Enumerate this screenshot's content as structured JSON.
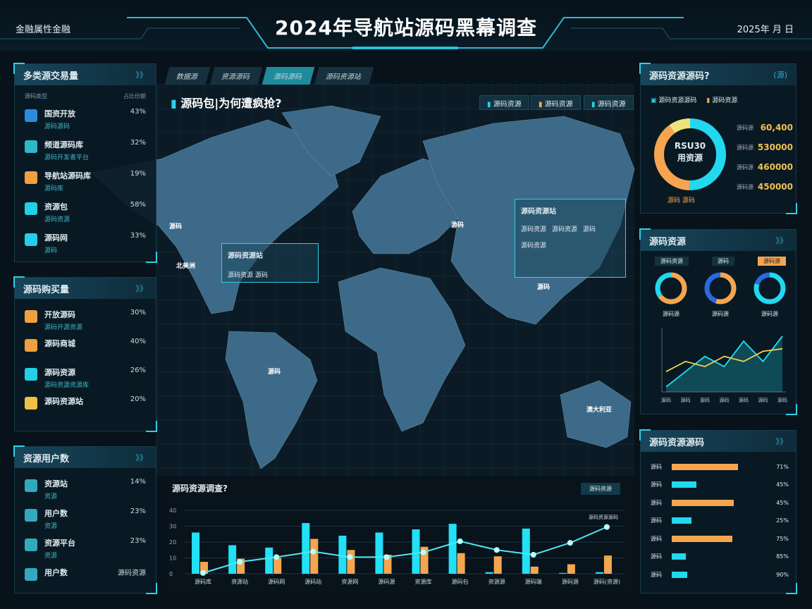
{
  "header": {
    "title": "2024年导航站源码黑幕调查",
    "left": "金融属性金融",
    "right": "2025年 月 日"
  },
  "colors": {
    "accent": "#22e0f5",
    "orange": "#f5a550",
    "yellow": "#f0e070",
    "map": "#3d6a88",
    "bg": "#07121b"
  },
  "left_panels": [
    {
      "title": "多类源交易量",
      "more": "》》",
      "col1": "源码类型",
      "col2": "占比份额",
      "items": [
        {
          "icon": "bottle-icon",
          "color": "#2a8be0",
          "name": "国资开放",
          "sub": "源码源码",
          "pct": "43%"
        },
        {
          "icon": "bucket-icon",
          "color": "#2fb8c8",
          "name": "频道源码库",
          "sub": "源码开发者平台",
          "pct": "32%"
        },
        {
          "icon": "box-icon",
          "color": "#f0a040",
          "name": "导航站源码库",
          "sub": "源码库",
          "pct": "19%"
        },
        {
          "icon": "cake-icon",
          "color": "#22d0e8",
          "name": "资源包",
          "sub": "源码资源",
          "pct": "58%"
        },
        {
          "icon": "book-icon",
          "color": "#22d0e8",
          "name": "源码网",
          "sub": "源码",
          "pct": "33%"
        }
      ]
    },
    {
      "title": "源码购买量",
      "more": "》》",
      "items": [
        {
          "icon": "tag-icon",
          "color": "#f0a040",
          "name": "开放源码",
          "sub": "源码开源资源",
          "pct": "30%"
        },
        {
          "icon": "ticket-icon",
          "color": "#f0a040",
          "name": "源码商城",
          "sub": "",
          "pct": "40%"
        },
        {
          "icon": "chat-icon",
          "color": "#22d0e8",
          "name": "源码资源",
          "sub": "源码资源资源库",
          "pct": "26%"
        },
        {
          "icon": "gift-icon",
          "color": "#f0c040",
          "name": "源码资源站",
          "sub": "",
          "pct": "20%"
        }
      ]
    },
    {
      "title": "资源用户数",
      "more": "》》",
      "items": [
        {
          "icon": "image-icon",
          "color": "#3ab",
          "name": "资源站",
          "sub": "资源",
          "pct": "14%"
        },
        {
          "icon": "gauge-icon",
          "color": "#3ab",
          "name": "用户数",
          "sub": "资源",
          "pct": "23%"
        },
        {
          "icon": "monitor-icon",
          "color": "#3ab",
          "name": "资源平台",
          "sub": "资源",
          "pct": "23%"
        },
        {
          "icon": "screen-icon",
          "color": "#3ab",
          "name": "用户数",
          "sub": "",
          "pct": "源码资源"
        }
      ]
    }
  ],
  "main": {
    "tabs": [
      "数据源",
      "资源源码",
      "源码源码",
      "源码资源站"
    ],
    "active_tab": 2,
    "title": "源码包|为何遭疯抢?",
    "buttons": [
      "源码资源",
      "源码资源",
      "源码资源"
    ],
    "tooltip_left": {
      "title": "源码资源站",
      "line": "源码资源 源码"
    },
    "tooltip_right": {
      "title": "源码资源站",
      "items": [
        "源码资源",
        "源码资源",
        "源码"
      ],
      "line": "源码资源"
    },
    "map_labels": {
      "na": "源码",
      "us": "北美洲",
      "sa": "源码",
      "eu": "源码",
      "asia": "源码",
      "au": "澳大利亚"
    }
  },
  "bottom_chart": {
    "title": "源码资源调查?",
    "button": "源码资源",
    "chart_data": {
      "type": "bar",
      "categories": [
        "源码库",
        "资源站",
        "源码网",
        "源码站",
        "资源网",
        "源码源",
        "资源库",
        "源码包",
        "资源源",
        "源码端",
        "源码源",
        "源码(资源)"
      ],
      "yticks": [
        "0",
        "10",
        "20",
        "30",
        "40"
      ],
      "ylim": [
        0,
        45
      ],
      "series": [
        {
          "type": "bar",
          "color": "#22e0f5",
          "values": [
            26,
            18,
            16.5,
            32,
            24,
            26,
            28,
            31.5,
            1,
            28.5,
            0.5,
            1
          ]
        },
        {
          "type": "bar",
          "color": "#f5a550",
          "values": [
            7.5,
            9.5,
            10,
            22,
            15,
            12,
            17,
            13,
            11,
            4.5,
            6,
            11.5
          ]
        },
        {
          "type": "line",
          "color": "#4fe8f0",
          "values": [
            0.5,
            7.5,
            10.5,
            14,
            10.5,
            10.5,
            13.5,
            20.5,
            15,
            12,
            19.5,
            29.5
          ]
        }
      ],
      "annotation": "源码资源源码"
    }
  },
  "right_panels": {
    "p1": {
      "title": "源码资源源码?",
      "more": "(源)",
      "legend": [
        "源码资源源码",
        "源码资源"
      ],
      "center": [
        "RSU30",
        "用资源"
      ],
      "donut": [
        {
          "value": 50,
          "color": "#22d8f0"
        },
        {
          "value": 40,
          "color": "#f5a550"
        },
        {
          "value": 10,
          "color": "#f0e27a"
        }
      ],
      "stats": [
        {
          "label": "源码源",
          "value": "60,400"
        },
        {
          "label": "源码源",
          "value": "530000"
        },
        {
          "label": "源码源",
          "value": "460000"
        },
        {
          "label": "源码源",
          "value": "450000"
        }
      ],
      "footer": "源码 源码"
    },
    "p2": {
      "title": "源码资源",
      "more": "》》",
      "legend": [
        "源码资源",
        "源码",
        "源码源"
      ],
      "donuts": [
        {
          "label": "源码源",
          "pct": 65,
          "c1": "#f5a550",
          "c2": "#22d8f0"
        },
        {
          "label": "源码源",
          "pct": 55,
          "c1": "#f5a550",
          "c2": "#2a6ae0"
        },
        {
          "label": "源码源",
          "pct": 80,
          "c1": "#22d8f0",
          "c2": "#2a6ae0"
        }
      ],
      "chart_data": {
        "type": "area",
        "x": [
          "源码",
          "源码",
          "源码",
          "源码",
          "源码",
          "源码",
          "源码"
        ],
        "series": [
          {
            "color": "#22e0f5",
            "values": [
              2,
              8,
              14,
              10,
              20,
              12,
              22
            ]
          },
          {
            "color": "#f0d050",
            "values": [
              8,
              12,
              10,
              14,
              12,
              16,
              17
            ]
          }
        ]
      }
    },
    "p3": {
      "title": "源码资源源码",
      "more": "》》",
      "rows": [
        {
          "label": "源码",
          "value": 85,
          "color": "#f5a550",
          "pct": "71%"
        },
        {
          "label": "源码",
          "value": 32,
          "color": "#22d8f0",
          "pct": "45%"
        },
        {
          "label": "源码",
          "value": 80,
          "color": "#f5a550",
          "pct": "45%"
        },
        {
          "label": "源码",
          "value": 25,
          "color": "#22d8f0",
          "pct": "25%"
        },
        {
          "label": "源码",
          "value": 78,
          "color": "#f5a550",
          "pct": "75%"
        },
        {
          "label": "源码",
          "value": 18,
          "color": "#22d8f0",
          "pct": "85%"
        },
        {
          "label": "源码",
          "value": 20,
          "color": "#22d8f0",
          "pct": "90%"
        }
      ]
    }
  }
}
